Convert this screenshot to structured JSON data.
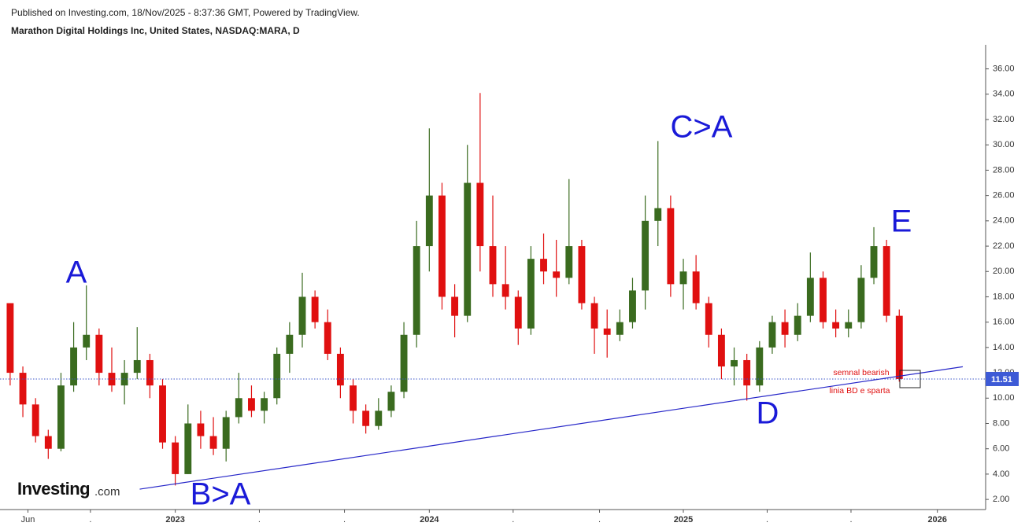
{
  "chart_data": {
    "type": "candlestick",
    "subtitle": "Published on Investing.com, 18/Nov/2025 - 8:37:36 GMT, Powered by TradingView.",
    "title": "Marathon Digital Holdings Inc, United States, NASDAQ:MARA, D",
    "logo": {
      "brand": "Investing",
      "suffix": ".com"
    },
    "up_color": "#3a6b1f",
    "down_color": "#e01010",
    "x": [
      2022.35,
      2022.4,
      2022.45,
      2022.5,
      2022.55,
      2022.6,
      2022.65,
      2022.7,
      2022.75,
      2022.8,
      2022.85,
      2022.9,
      2022.95,
      2023.0,
      2023.05,
      2023.1,
      2023.15,
      2023.2,
      2023.25,
      2023.3,
      2023.35,
      2023.4,
      2023.45,
      2023.5,
      2023.55,
      2023.6,
      2023.65,
      2023.7,
      2023.75,
      2023.8,
      2023.85,
      2023.9,
      2023.95,
      2024.0,
      2024.05,
      2024.1,
      2024.15,
      2024.2,
      2024.25,
      2024.3,
      2024.35,
      2024.4,
      2024.45,
      2024.5,
      2024.55,
      2024.6,
      2024.65,
      2024.7,
      2024.75,
      2024.8,
      2024.85,
      2024.9,
      2024.95,
      2025.0,
      2025.05,
      2025.1,
      2025.15,
      2025.2,
      2025.25,
      2025.3,
      2025.35,
      2025.4,
      2025.45,
      2025.5,
      2025.55,
      2025.6,
      2025.65,
      2025.7,
      2025.75,
      2025.8,
      2025.85
    ],
    "open": [
      17.5,
      12,
      9.5,
      7,
      6,
      11,
      14,
      15,
      12,
      11,
      12,
      13,
      11,
      6.5,
      4,
      8,
      7,
      6,
      8.5,
      10,
      9,
      10,
      13.5,
      15,
      18,
      16,
      13.5,
      11,
      9,
      7.8,
      9,
      10.5,
      15,
      22,
      26,
      18,
      16.5,
      27,
      22,
      19,
      18,
      15.5,
      21,
      20,
      19.5,
      22,
      17.5,
      15.5,
      15,
      16,
      18.5,
      24,
      25,
      19,
      20,
      17.5,
      15,
      12.5,
      13,
      11,
      14,
      16,
      15,
      16.5,
      19.5,
      16,
      15.5,
      16,
      19.5,
      22,
      16.5
    ],
    "high": [
      17.5,
      12.5,
      10,
      7.5,
      12,
      16,
      18.9,
      15.5,
      14,
      13,
      15.6,
      13.5,
      11.5,
      7,
      9.5,
      9,
      8.5,
      9,
      12,
      11,
      10.5,
      14,
      16,
      19.9,
      18.5,
      17,
      14,
      11.5,
      9.5,
      10,
      11,
      16,
      24,
      31.3,
      27,
      19,
      30,
      34.1,
      26,
      22,
      18.5,
      22,
      23,
      22.5,
      27.3,
      22.5,
      18,
      17,
      17,
      19.5,
      26,
      30.3,
      26,
      21,
      21.3,
      18,
      15.5,
      14,
      13.5,
      14.5,
      16.5,
      17,
      17.5,
      21.5,
      20,
      17,
      17,
      20.5,
      23.5,
      22.5,
      17
    ],
    "low": [
      11,
      8.5,
      6.5,
      5.2,
      5.8,
      10.5,
      13,
      11,
      10.5,
      9.5,
      11.5,
      10,
      6,
      3.1,
      4,
      6,
      5.5,
      5,
      8,
      8.5,
      8,
      9.5,
      12,
      14,
      15.5,
      13,
      10,
      8,
      7.2,
      7.5,
      8.5,
      10,
      14,
      20,
      17,
      14.8,
      16,
      20,
      18,
      17,
      14.2,
      15,
      19,
      18,
      19,
      17,
      13.5,
      13.2,
      14.5,
      15.5,
      17,
      22,
      18,
      17,
      17,
      14,
      11.5,
      11,
      9.8,
      10.5,
      13.5,
      14,
      14.5,
      16,
      15.5,
      14.8,
      14.8,
      15.5,
      19,
      16,
      11.3
    ],
    "close": [
      12,
      9.5,
      7,
      6,
      11,
      14,
      15,
      12,
      11,
      12,
      13,
      11,
      6.5,
      4,
      8,
      7,
      6,
      8.5,
      10,
      9,
      10,
      13.5,
      15,
      18,
      16,
      13.5,
      11,
      9,
      7.8,
      9,
      10.5,
      15,
      22,
      26,
      18,
      16.5,
      27,
      22,
      19,
      18,
      15.5,
      21,
      20,
      19.5,
      22,
      17.5,
      15.5,
      15,
      16,
      18.5,
      24,
      25,
      19,
      20,
      17.5,
      15,
      12.5,
      13,
      11,
      14,
      16,
      15,
      16.5,
      19.5,
      16,
      15.5,
      16,
      19.5,
      22,
      16.5,
      11.51
    ],
    "xlim": [
      2022.31,
      2026.19
    ],
    "ylim": [
      1.2,
      37.9
    ],
    "xticks": [
      {
        "value": 2022.42,
        "label": "Jun"
      },
      {
        "value": 2022.666,
        "label": "."
      },
      {
        "value": 2023,
        "label": "2023"
      },
      {
        "value": 2023.331,
        "label": "."
      },
      {
        "value": 2023.666,
        "label": "."
      },
      {
        "value": 2024,
        "label": "2024"
      },
      {
        "value": 2024.33,
        "label": "."
      },
      {
        "value": 2024.67,
        "label": "."
      },
      {
        "value": 2025,
        "label": "2025"
      },
      {
        "value": 2025.33,
        "label": "."
      },
      {
        "value": 2025.66,
        "label": "."
      },
      {
        "value": 2026,
        "label": "2026"
      }
    ],
    "yticks": [
      {
        "value": 2,
        "label": "2.00"
      },
      {
        "value": 4,
        "label": "4.00"
      },
      {
        "value": 6,
        "label": "6.00"
      },
      {
        "value": 8,
        "label": "8.00"
      },
      {
        "value": 10,
        "label": "10.00"
      },
      {
        "value": 12,
        "label": "12.00"
      },
      {
        "value": 14,
        "label": "14.00"
      },
      {
        "value": 16,
        "label": "16.00"
      },
      {
        "value": 18,
        "label": "18.00"
      },
      {
        "value": 20,
        "label": "20.00"
      },
      {
        "value": 22,
        "label": "22.00"
      },
      {
        "value": 24,
        "label": "24.00"
      },
      {
        "value": 26,
        "label": "26.00"
      },
      {
        "value": 28,
        "label": "28.00"
      },
      {
        "value": 30,
        "label": "30.00"
      },
      {
        "value": 32,
        "label": "32.00"
      },
      {
        "value": 34,
        "label": "34.00"
      },
      {
        "value": 36,
        "label": "36.00"
      }
    ],
    "last_price": 11.51,
    "trendline": {
      "x": [
        2022.86,
        2026.1
      ],
      "y": [
        2.81,
        12.48
      ],
      "color": "#2626c8"
    },
    "annotations": [
      {
        "text": "A"
      },
      {
        "text": "B>A"
      },
      {
        "text": "C>A"
      },
      {
        "text": "D"
      },
      {
        "text": "E"
      },
      {
        "text": "semnal bearish"
      },
      {
        "text": "linia BD e sparta"
      }
    ]
  }
}
